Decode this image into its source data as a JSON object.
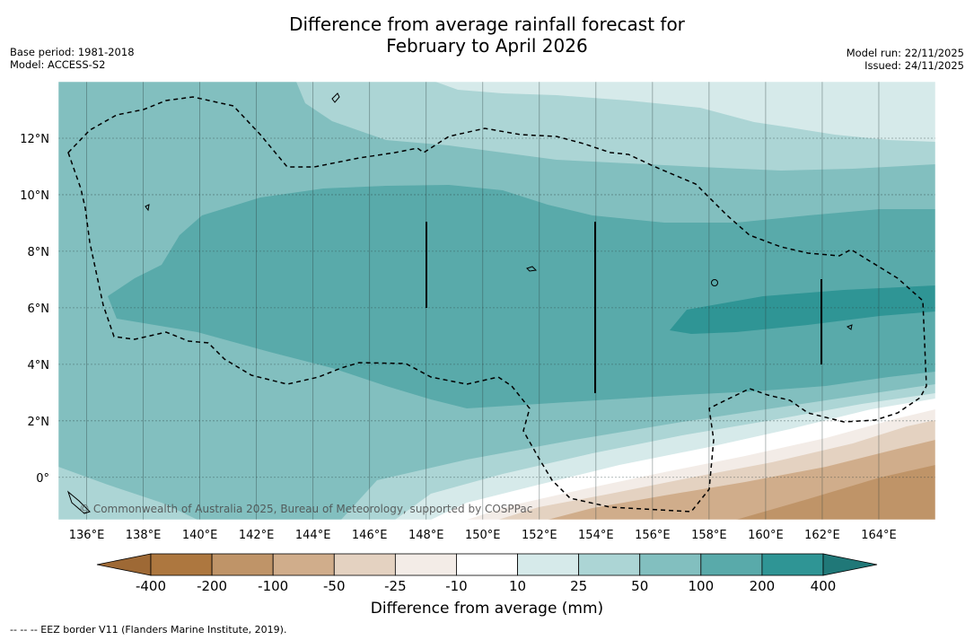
{
  "title": {
    "line1": "Difference from average rainfall forecast for",
    "line2": "February to April 2026"
  },
  "meta_left": {
    "base_period": "Base period: 1981-2018",
    "model": "Model: ACCESS-S2"
  },
  "meta_right": {
    "model_run": "Model run: 22/11/2025",
    "issued": "Issued: 24/11/2025"
  },
  "map": {
    "lon_range": [
      135,
      166
    ],
    "lat_range": [
      -1.5,
      14
    ],
    "lon_ticks": [
      "136°E",
      "138°E",
      "140°E",
      "142°E",
      "144°E",
      "146°E",
      "148°E",
      "150°E",
      "152°E",
      "154°E",
      "156°E",
      "158°E",
      "160°E",
      "162°E",
      "164°E"
    ],
    "lat_ticks": [
      "12°N",
      "10°N",
      "8°N",
      "6°N",
      "4°N",
      "2°N",
      "0°"
    ],
    "copyright": "© Commonwealth of Australia 2025, Bureau of Meteorology, supported by COSPPac"
  },
  "colorbar": {
    "ticks": [
      "-400",
      "-200",
      "-100",
      "-50",
      "-25",
      "-10",
      "10",
      "25",
      "50",
      "100",
      "200",
      "400"
    ],
    "colors": [
      "#9e6935",
      "#ad773f",
      "#bf9468",
      "#d0ad8b",
      "#e4d2c1",
      "#f3ece7",
      "#ffffff",
      "#d6eaea",
      "#acd5d5",
      "#82bfbf",
      "#59aaaa",
      "#2f9595",
      "#207878"
    ],
    "label": "Difference from average (mm)"
  },
  "footnote": "--  --  -- EEZ border V11 (Flanders Marine Institute, 2019)."
}
